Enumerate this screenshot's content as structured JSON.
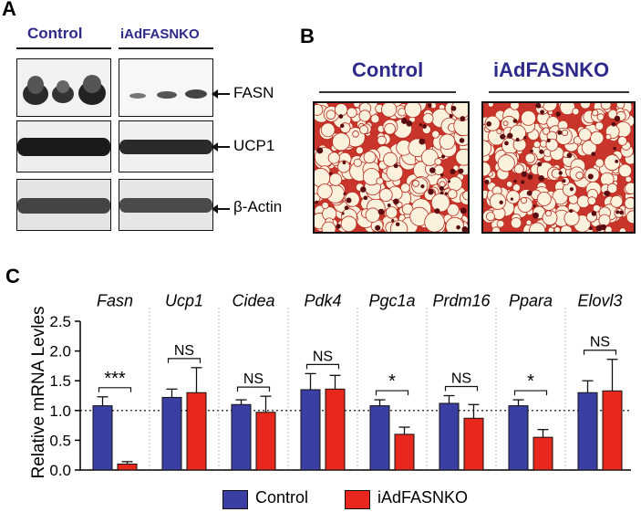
{
  "panel_a": {
    "letter": "A",
    "groups": [
      "Control",
      "iAdFASNKO"
    ],
    "bands": [
      "FASN",
      "UCP1",
      "β-Actin"
    ]
  },
  "panel_b": {
    "letter": "B",
    "groups": [
      "Control",
      "iAdFASNKO"
    ]
  },
  "panel_c": {
    "letter": "C"
  },
  "colors": {
    "control": "#3b3fa3",
    "ko": "#e8281c",
    "title": "#2e2a8a"
  },
  "chart_data": {
    "type": "bar",
    "ylabel": "Relative mRNA Levles",
    "ylim": [
      0,
      2.5
    ],
    "yticks": [
      "0.0",
      "0.5",
      "1.0",
      "1.5",
      "2.0",
      "2.5"
    ],
    "reference_line": 1.0,
    "categories": [
      "Fasn",
      "Ucp1",
      "Cidea",
      "Pdk4",
      "Pgc1a",
      "Prdm16",
      "Ppara",
      "Elovl3"
    ],
    "series": [
      {
        "name": "Control",
        "values": [
          1.08,
          1.22,
          1.1,
          1.35,
          1.08,
          1.12,
          1.08,
          1.3
        ],
        "errors": [
          0.15,
          0.14,
          0.08,
          0.27,
          0.1,
          0.13,
          0.1,
          0.2
        ]
      },
      {
        "name": "iAdFASNKO",
        "values": [
          0.1,
          1.3,
          0.97,
          1.36,
          0.6,
          0.87,
          0.55,
          1.33
        ],
        "errors": [
          0.04,
          0.42,
          0.27,
          0.23,
          0.12,
          0.23,
          0.13,
          0.53
        ]
      }
    ],
    "significance": [
      "***",
      "NS",
      "NS",
      "NS",
      "*",
      "NS",
      "*",
      "NS"
    ],
    "legend_position": "bottom"
  }
}
